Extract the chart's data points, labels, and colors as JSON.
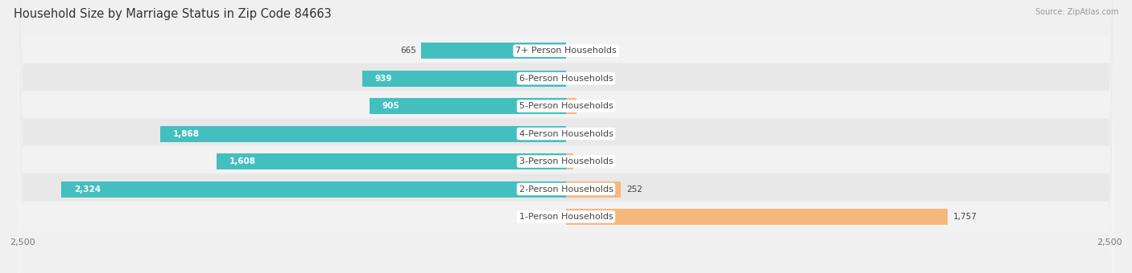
{
  "title": "Household Size by Marriage Status in Zip Code 84663",
  "source": "Source: ZipAtlas.com",
  "categories": [
    "7+ Person Households",
    "6-Person Households",
    "5-Person Households",
    "4-Person Households",
    "3-Person Households",
    "2-Person Households",
    "1-Person Households"
  ],
  "family_values": [
    665,
    939,
    905,
    1868,
    1608,
    2324,
    0
  ],
  "nonfamily_values": [
    0,
    0,
    48,
    0,
    35,
    252,
    1757
  ],
  "family_color": "#43bfbf",
  "nonfamily_color": "#f5b87c",
  "axis_limit": 2500,
  "bg_color": "#f0f0f0",
  "row_bg_color": "#e8e8e8",
  "row_bg_light": "#f8f8f8",
  "title_fontsize": 10.5,
  "label_fontsize": 8.0,
  "tick_fontsize": 8.0,
  "value_fontsize": 7.5
}
